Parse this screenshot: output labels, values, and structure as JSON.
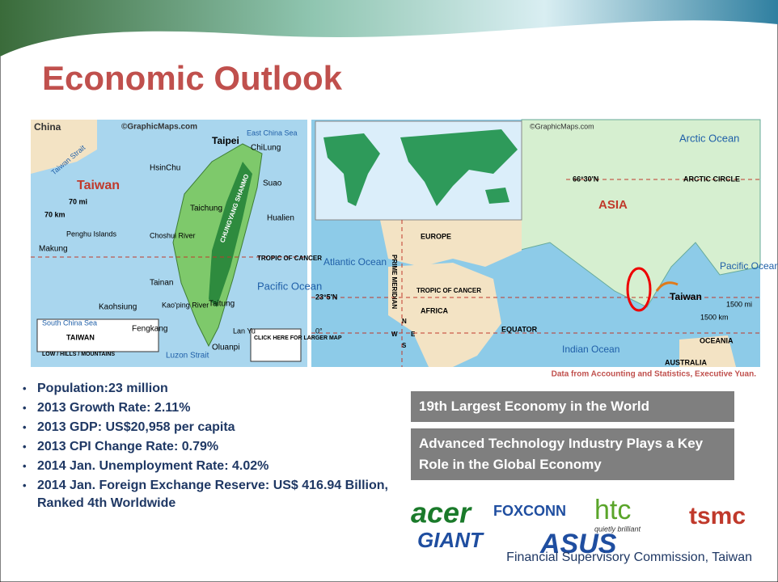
{
  "header": {
    "title": "Economic Outlook"
  },
  "taiwan_map": {
    "labels": [
      "China",
      "©GraphicMaps.com",
      "East China Sea",
      "ChiLung",
      "Taipei",
      "HsinChu",
      "Taiwan Strait",
      "Taiwan",
      "Suao",
      "70 mi",
      "70 km",
      "Taichung",
      "Hualien",
      "Penghu Islands",
      "Choshui River",
      "Makung",
      "CHUNGYANG SHANMO",
      "TROPIC OF CANCER",
      "Tainan",
      "Pacific Ocean",
      "Kaohsiung",
      "Kao'ping River",
      "Taitung",
      "South China Sea",
      "Fengkang",
      "Lan Yu",
      "TAIWAN",
      "LOW / HILLS / MOUNTAINS",
      "Oluanpi",
      "Luzon Strait",
      "CLICK HERE FOR LARGER MAP"
    ]
  },
  "world_map": {
    "labels": [
      "©GraphicMaps.com",
      "Arctic Ocean",
      "66°30'N",
      "ARCTIC CIRCLE",
      "ASIA",
      "EUROPE",
      "Atlantic Ocean",
      "PRIME MERIDIAN",
      "Pacific Ocean",
      "23°5'N",
      "TROPIC OF CANCER",
      "AFRICA",
      "Taiwan",
      "1500 mi",
      "1500 km",
      "0°",
      "EQUATOR",
      "OCEANIA",
      "Indian Ocean",
      "AUSTRALIA",
      "N",
      "W",
      "E",
      "S"
    ]
  },
  "source_note": "Data from Accounting and Statistics, Executive Yuan.",
  "bullets": [
    "Population:23 million",
    "2013 Growth Rate: 2.11%",
    "2013 GDP: US$20,958 per capita",
    "2013 CPI Change Rate: 0.79%",
    "2014 Jan. Unemployment Rate: 4.02%",
    "2014 Jan. Foreign Exchange Reserve: US$ 416.94 Billion, Ranked 4th Worldwide"
  ],
  "highlights": [
    "19th Largest Economy in the World",
    "Advanced Technology Industry Plays a Key Role in the Global Economy"
  ],
  "logos": [
    "acer",
    "FOXCONN",
    "htc",
    "quietly brilliant",
    "tsmc",
    "GIANT",
    "ASUS"
  ],
  "footer": "Financial Supervisory Commission, Taiwan"
}
